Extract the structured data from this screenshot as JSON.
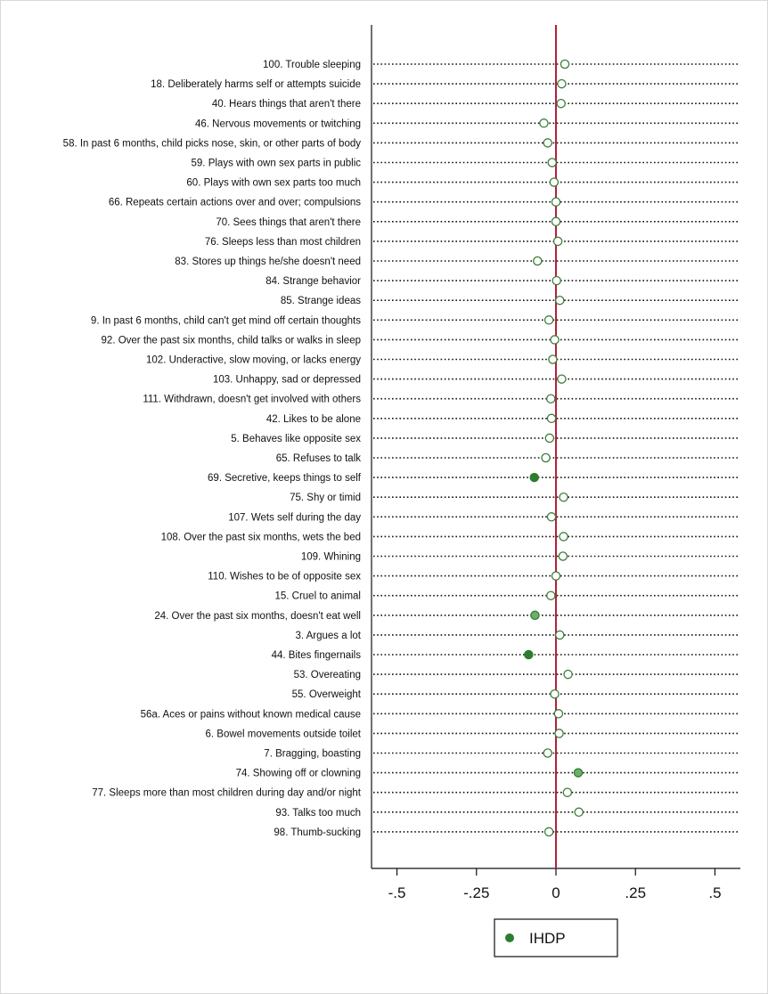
{
  "chart_data": {
    "type": "scatter",
    "title": "",
    "xlabel": "",
    "ylabel": "",
    "xlim": [
      -0.58,
      0.58
    ],
    "xticks": [
      {
        "value": -0.5,
        "label": "-.5"
      },
      {
        "value": -0.25,
        "label": "-.25"
      },
      {
        "value": 0,
        "label": "0"
      },
      {
        "value": 0.25,
        "label": ".25"
      },
      {
        "value": 0.5,
        "label": ".5"
      }
    ],
    "reference_line": {
      "x": 0,
      "color": "#b2223a"
    },
    "legend": {
      "label": "IHDP",
      "placement": "bottom-center",
      "color": "#2e7d2e"
    },
    "marker_colors": {
      "open_fill": "#ffffff",
      "open_stroke": "#3a7d3a",
      "dark_fill": "#2e7d2e",
      "light_fill": "#6ab06a"
    },
    "series": [
      {
        "name": "IHDP",
        "points": [
          {
            "label": "100. Trouble sleeping",
            "x": 0.028,
            "style": "open"
          },
          {
            "label": "18. Deliberately harms self or attempts suicide",
            "x": 0.018,
            "style": "open"
          },
          {
            "label": "40. Hears things that aren't there",
            "x": 0.016,
            "style": "open"
          },
          {
            "label": "46. Nervous movements or twitching",
            "x": -0.038,
            "style": "open"
          },
          {
            "label": "58. In past 6 months, child picks nose, skin, or other parts of body",
            "x": -0.026,
            "style": "open"
          },
          {
            "label": "59. Plays with own sex parts in public",
            "x": -0.012,
            "style": "open"
          },
          {
            "label": "60. Plays with own sex parts too much",
            "x": -0.006,
            "style": "open"
          },
          {
            "label": "66. Repeats certain actions over and over; compulsions",
            "x": 0.0,
            "style": "open"
          },
          {
            "label": "70. Sees things that aren't there",
            "x": 0.0,
            "style": "open"
          },
          {
            "label": "76. Sleeps less than most children",
            "x": 0.006,
            "style": "open"
          },
          {
            "label": "83. Stores up things he/she doesn't need",
            "x": -0.058,
            "style": "open"
          },
          {
            "label": "84. Strange behavior",
            "x": 0.002,
            "style": "open"
          },
          {
            "label": "85. Strange ideas",
            "x": 0.012,
            "style": "open"
          },
          {
            "label": "9. In past 6 months, child can't get mind off certain thoughts",
            "x": -0.022,
            "style": "open"
          },
          {
            "label": "92. Over the past six months, child talks or walks in sleep",
            "x": -0.004,
            "style": "open"
          },
          {
            "label": "102. Underactive, slow moving, or lacks energy",
            "x": -0.01,
            "style": "open"
          },
          {
            "label": "103. Unhappy, sad or depressed",
            "x": 0.018,
            "style": "open"
          },
          {
            "label": "111. Withdrawn, doesn't get involved with others",
            "x": -0.016,
            "style": "open"
          },
          {
            "label": "42. Likes to be alone",
            "x": -0.014,
            "style": "open"
          },
          {
            "label": "5. Behaves like opposite sex",
            "x": -0.02,
            "style": "open"
          },
          {
            "label": "65. Refuses to talk",
            "x": -0.032,
            "style": "open"
          },
          {
            "label": "69. Secretive, keeps things to self",
            "x": -0.068,
            "style": "dark"
          },
          {
            "label": "75. Shy or timid",
            "x": 0.024,
            "style": "open"
          },
          {
            "label": "107. Wets self during the day",
            "x": -0.014,
            "style": "open"
          },
          {
            "label": "108. Over the past six months, wets the bed",
            "x": 0.024,
            "style": "open"
          },
          {
            "label": "109. Whining",
            "x": 0.022,
            "style": "open"
          },
          {
            "label": "110. Wishes to be of opposite sex",
            "x": 0.0,
            "style": "open"
          },
          {
            "label": "15. Cruel to animal",
            "x": -0.016,
            "style": "open"
          },
          {
            "label": "24. Over the past six months, doesn't eat well",
            "x": -0.066,
            "style": "light"
          },
          {
            "label": "3. Argues a lot",
            "x": 0.012,
            "style": "open"
          },
          {
            "label": "44. Bites fingernails",
            "x": -0.086,
            "style": "dark"
          },
          {
            "label": "53. Overeating",
            "x": 0.038,
            "style": "open"
          },
          {
            "label": "55. Overweight",
            "x": -0.004,
            "style": "open"
          },
          {
            "label": "56a. Aces or pains without known medical cause",
            "x": 0.008,
            "style": "open"
          },
          {
            "label": "6. Bowel movements outside toilet",
            "x": 0.01,
            "style": "open"
          },
          {
            "label": "7. Bragging, boasting",
            "x": -0.026,
            "style": "open"
          },
          {
            "label": "74. Showing off or clowning",
            "x": 0.07,
            "style": "light"
          },
          {
            "label": "77. Sleeps more than most children during day and/or night",
            "x": 0.036,
            "style": "open"
          },
          {
            "label": "93. Talks too much",
            "x": 0.072,
            "style": "open"
          },
          {
            "label": "98. Thumb-sucking",
            "x": -0.022,
            "style": "open"
          }
        ]
      }
    ]
  }
}
